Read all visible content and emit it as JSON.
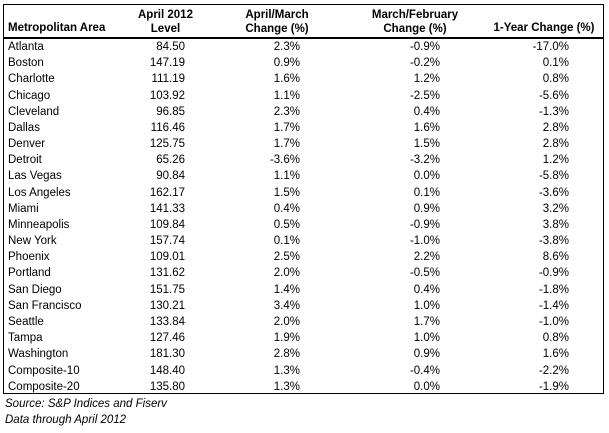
{
  "table": {
    "headers": {
      "area": [
        "Metropolitan Area"
      ],
      "level": [
        "April 2012",
        "Level"
      ],
      "april_march": [
        "April/March",
        "Change (%)"
      ],
      "march_february": [
        "March/February",
        "Change (%)"
      ],
      "one_year": [
        "1-Year Change (%)"
      ]
    },
    "rows": [
      {
        "area": "Atlanta",
        "level": "84.50",
        "april_march": "2.3%",
        "march_february": "-0.9%",
        "one_year": "-17.0%"
      },
      {
        "area": "Boston",
        "level": "147.19",
        "april_march": "0.9%",
        "march_february": "-0.2%",
        "one_year": "0.1%"
      },
      {
        "area": "Charlotte",
        "level": "111.19",
        "april_march": "1.6%",
        "march_february": "1.2%",
        "one_year": "0.8%"
      },
      {
        "area": "Chicago",
        "level": "103.92",
        "april_march": "1.1%",
        "march_february": "-2.5%",
        "one_year": "-5.6%"
      },
      {
        "area": "Cleveland",
        "level": "96.85",
        "april_march": "2.3%",
        "march_february": "0.4%",
        "one_year": "-1.3%"
      },
      {
        "area": "Dallas",
        "level": "116.46",
        "april_march": "1.7%",
        "march_february": "1.6%",
        "one_year": "2.8%"
      },
      {
        "area": "Denver",
        "level": "125.75",
        "april_march": "1.7%",
        "march_february": "1.5%",
        "one_year": "2.8%"
      },
      {
        "area": "Detroit",
        "level": "65.26",
        "april_march": "-3.6%",
        "march_february": "-3.2%",
        "one_year": "1.2%"
      },
      {
        "area": "Las Vegas",
        "level": "90.84",
        "april_march": "1.1%",
        "march_february": "0.0%",
        "one_year": "-5.8%"
      },
      {
        "area": "Los Angeles",
        "level": "162.17",
        "april_march": "1.5%",
        "march_february": "0.1%",
        "one_year": "-3.6%"
      },
      {
        "area": "Miami",
        "level": "141.33",
        "april_march": "0.4%",
        "march_february": "0.9%",
        "one_year": "3.2%"
      },
      {
        "area": "Minneapolis",
        "level": "109.84",
        "april_march": "0.5%",
        "march_february": "-0.9%",
        "one_year": "3.8%"
      },
      {
        "area": "New York",
        "level": "157.74",
        "april_march": "0.1%",
        "march_february": "-1.0%",
        "one_year": "-3.8%"
      },
      {
        "area": "Phoenix",
        "level": "109.01",
        "april_march": "2.5%",
        "march_february": "2.2%",
        "one_year": "8.6%"
      },
      {
        "area": "Portland",
        "level": "131.62",
        "april_march": "2.0%",
        "march_february": "-0.5%",
        "one_year": "-0.9%"
      },
      {
        "area": "San Diego",
        "level": "151.75",
        "april_march": "1.4%",
        "march_february": "0.4%",
        "one_year": "-1.8%"
      },
      {
        "area": "San Francisco",
        "level": "130.21",
        "april_march": "3.4%",
        "march_february": "1.0%",
        "one_year": "-1.4%"
      },
      {
        "area": "Seattle",
        "level": "133.84",
        "april_march": "2.0%",
        "march_february": "1.7%",
        "one_year": "-1.0%"
      },
      {
        "area": "Tampa",
        "level": "127.46",
        "april_march": "1.9%",
        "march_february": "1.0%",
        "one_year": "0.8%"
      },
      {
        "area": "Washington",
        "level": "181.30",
        "april_march": "2.8%",
        "march_february": "0.9%",
        "one_year": "1.6%"
      },
      {
        "area": "Composite-10",
        "level": "148.40",
        "april_march": "1.3%",
        "march_february": "-0.4%",
        "one_year": "-2.2%"
      },
      {
        "area": "Composite-20",
        "level": "135.80",
        "april_march": "1.3%",
        "march_february": "0.0%",
        "one_year": "-1.9%"
      }
    ]
  },
  "notes": {
    "source": "Source: S&P Indices and Fiserv",
    "data_through": "Data through April 2012"
  }
}
